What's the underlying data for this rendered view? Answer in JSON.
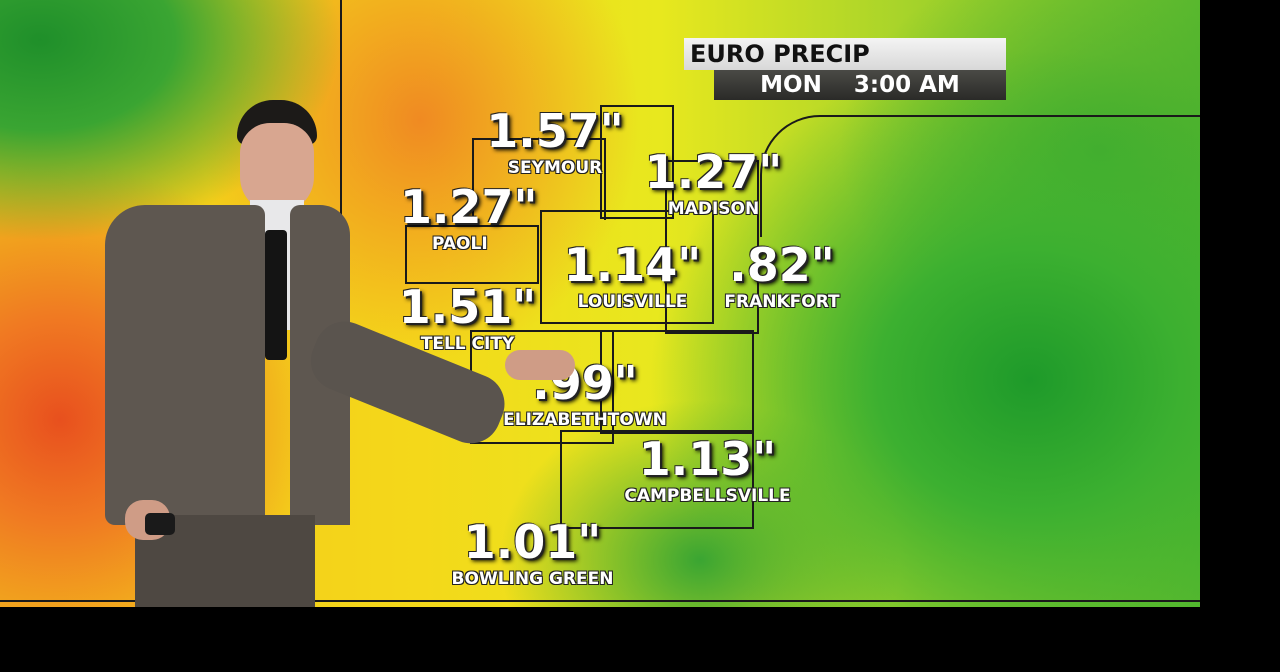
{
  "graphic": {
    "title": "EURO PRECIP",
    "day": "MON",
    "time": "3:00 AM"
  },
  "readings": [
    {
      "value": "1.57\"",
      "city": "SEYMOUR"
    },
    {
      "value": "1.27\"",
      "city": "MADISON"
    },
    {
      "value": "1.27\"",
      "city": "PAOLI"
    },
    {
      "value": "1.14\"",
      "city": "LOUISVILLE"
    },
    {
      "value": ".82\"",
      "city": "FRANKFORT"
    },
    {
      "value": "1.51\"",
      "city": "TELL CITY"
    },
    {
      "value": ".99\"",
      "city": "ELIZABETHTOWN"
    },
    {
      "value": "1.13\"",
      "city": "CAMPBELLSVILLE"
    },
    {
      "value": "1.01\"",
      "city": "BOWLING GREEN"
    }
  ],
  "colors": {
    "heavy": "#e8501e",
    "moderate": "#f4d81a",
    "light": "#3cb030",
    "background": "#000000"
  }
}
